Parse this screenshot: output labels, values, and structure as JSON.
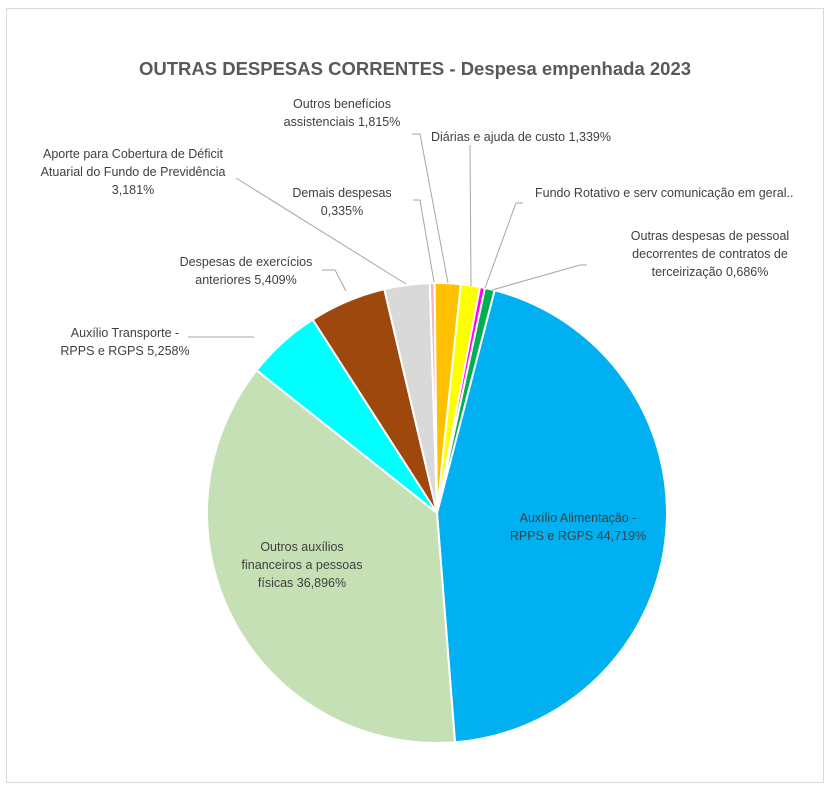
{
  "chart_data": {
    "type": "pie",
    "title": "OUTRAS DESPESAS CORRENTES - Despesa empenhada 2023",
    "slices": [
      {
        "name": "Auxílio Alimentação - RPPS e RGPS",
        "value": 44.719,
        "color": "#00b0f0",
        "label_lines": [
          "Auxílio Alimentação -",
          "RPPS e RGPS 44,719%"
        ]
      },
      {
        "name": "Outros auxílios financeiros a pessoas físicas",
        "value": 36.896,
        "color": "#c5e0b4",
        "label_lines": [
          "Outros auxílios",
          "financeiros a pessoas",
          "físicas 36,896%"
        ]
      },
      {
        "name": "Auxílio Transporte - RPPS e RGPS",
        "value": 5.258,
        "color": "#00ffff",
        "label_lines": [
          "Auxílio Transporte -",
          "RPPS e RGPS 5,258%"
        ]
      },
      {
        "name": "Despesas de exercícios anteriores",
        "value": 5.409,
        "color": "#9e480e",
        "label_lines": [
          "Despesas de exercícios",
          "anteriores 5,409%"
        ]
      },
      {
        "name": "Aporte para Cobertura de Déficit Atuarial do Fundo de Previdência",
        "value": 3.181,
        "color": "#d9d9d9",
        "label_lines": [
          "Aporte para Cobertura de Déficit",
          "Atuarial do Fundo de Previdência",
          "3,181%"
        ]
      },
      {
        "name": "Demais despesas",
        "value": 0.335,
        "color": "#f4b6c2",
        "label_lines": [
          "Demais despesas",
          "0,335%"
        ]
      },
      {
        "name": "Outros benefícios assistenciais",
        "value": 1.815,
        "color": "#ffc000",
        "label_lines": [
          "Outros benefícios",
          "assistenciais 1,815%"
        ]
      },
      {
        "name": "Diárias e ajuda de custo",
        "value": 1.339,
        "color": "#ffff00",
        "label_lines": [
          "Diárias e ajuda de custo 1,339%"
        ]
      },
      {
        "name": "Fundo Rotativo e serv comunicação em geral",
        "value": 0.35,
        "color": "#ff00ff",
        "label_lines": [
          "Fundo Rotativo e serv comunicação em geral.."
        ]
      },
      {
        "name": "Outras despesas de pessoal decorrentes de contratos de terceirização",
        "value": 0.686,
        "color": "#00b050",
        "label_lines": [
          "Outras despesas de pessoal",
          "decorrentes de contratos de",
          "terceirização 0,686%"
        ]
      }
    ]
  }
}
